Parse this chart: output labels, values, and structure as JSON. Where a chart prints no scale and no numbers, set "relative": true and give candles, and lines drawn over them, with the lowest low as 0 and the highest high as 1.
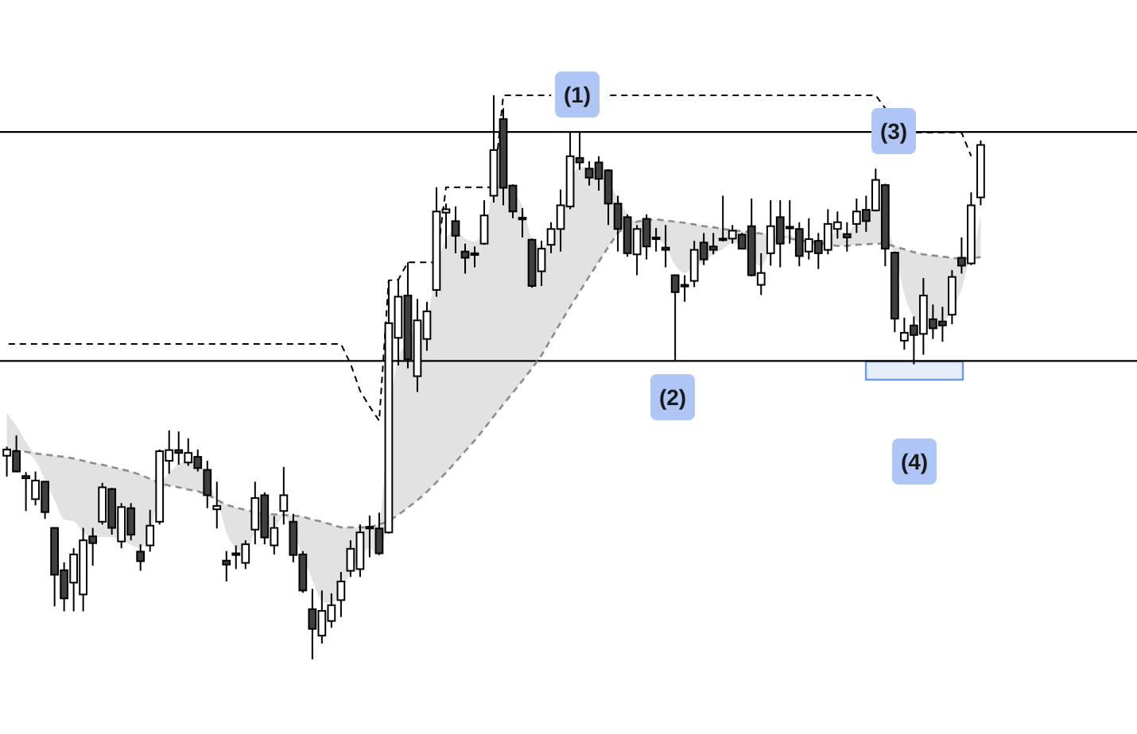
{
  "chart_data": {
    "type": "candlestick",
    "relative": true,
    "tick_labels": false,
    "categories": [
      null,
      null,
      null,
      null,
      null,
      null,
      null,
      null,
      null,
      null,
      null,
      null,
      null,
      null,
      null,
      null,
      null,
      null,
      null,
      null,
      null,
      null,
      null,
      null,
      null,
      null,
      null,
      null,
      null,
      null,
      null,
      null,
      null,
      null,
      null,
      null,
      null,
      null,
      null,
      null,
      null,
      null,
      null,
      null,
      null,
      null,
      null,
      null,
      null,
      null,
      null,
      null,
      null,
      null,
      null,
      null,
      null,
      null,
      null,
      null,
      null,
      null,
      null,
      null,
      null,
      null,
      null,
      null,
      null,
      null,
      null,
      null,
      null,
      null,
      null,
      null,
      null,
      null,
      null,
      null,
      null,
      null,
      null,
      null,
      null,
      null,
      null,
      null,
      null,
      null,
      null,
      null,
      null,
      null,
      null,
      null,
      null,
      null,
      null,
      null,
      null,
      null,
      null
    ],
    "ohlc": [
      [
        0.361,
        0.377,
        0.324,
        0.372
      ],
      [
        0.369,
        0.397,
        0.332,
        0.333
      ],
      [
        0.325,
        0.332,
        0.263,
        0.321
      ],
      [
        0.284,
        0.333,
        0.273,
        0.317
      ],
      [
        0.315,
        0.316,
        0.249,
        0.261
      ],
      [
        0.233,
        0.234,
        0.094,
        0.15
      ],
      [
        0.158,
        0.172,
        0.085,
        0.108
      ],
      [
        0.136,
        0.197,
        0.085,
        0.186
      ],
      [
        0.115,
        0.233,
        0.085,
        0.211
      ],
      [
        0.218,
        0.233,
        0.166,
        0.206
      ],
      [
        0.244,
        0.313,
        0.239,
        0.305
      ],
      [
        0.302,
        0.304,
        0.221,
        0.233
      ],
      [
        0.209,
        0.277,
        0.197,
        0.27
      ],
      [
        0.268,
        0.277,
        0.211,
        0.221
      ],
      [
        0.191,
        0.204,
        0.157,
        0.174
      ],
      [
        0.202,
        0.265,
        0.191,
        0.237
      ],
      [
        0.244,
        0.372,
        0.239,
        0.369
      ],
      [
        0.352,
        0.406,
        0.329,
        0.371
      ],
      [
        0.371,
        0.404,
        0.345,
        0.366
      ],
      [
        0.349,
        0.392,
        0.343,
        0.366
      ],
      [
        0.359,
        0.372,
        0.333,
        0.339
      ],
      [
        0.336,
        0.352,
        0.268,
        0.291
      ],
      [
        0.266,
        0.315,
        0.232,
        0.272
      ],
      [
        0.175,
        0.192,
        0.138,
        0.168
      ],
      [
        0.188,
        0.202,
        0.16,
        0.185
      ],
      [
        0.171,
        0.211,
        0.16,
        0.204
      ],
      [
        0.23,
        0.315,
        0.204,
        0.286
      ],
      [
        0.291,
        0.296,
        0.204,
        0.216
      ],
      [
        0.202,
        0.254,
        0.186,
        0.233
      ],
      [
        0.263,
        0.341,
        0.239,
        0.291
      ],
      [
        0.244,
        0.258,
        0.172,
        0.185
      ],
      [
        0.186,
        0.192,
        0.118,
        0.122
      ],
      [
        0.089,
        0.125,
        0,
        0.054
      ],
      [
        0.042,
        0.122,
        0.028,
        0.086
      ],
      [
        0.068,
        0.117,
        0.056,
        0.096
      ],
      [
        0.105,
        0.155,
        0.075,
        0.138
      ],
      [
        0.157,
        0.211,
        0.146,
        0.196
      ],
      [
        0.16,
        0.239,
        0.146,
        0.225
      ],
      [
        0.235,
        0.255,
        0.181,
        0.232
      ],
      [
        0.232,
        0.26,
        0.185,
        0.188
      ],
      [
        0.225,
        0.672,
        0.223,
        0.596
      ],
      [
        0.57,
        0.673,
        0.521,
        0.643
      ],
      [
        0.645,
        0.704,
        0.516,
        0.532
      ],
      [
        0.502,
        0.639,
        0.474,
        0.601
      ],
      [
        0.568,
        0.634,
        0.547,
        0.617
      ],
      [
        0.655,
        0.837,
        0.643,
        0.794
      ],
      [
        0.792,
        0.808,
        0.728,
        0.798
      ],
      [
        0.777,
        0.803,
        0.72,
        0.751
      ],
      [
        0.723,
        0.737,
        0.684,
        0.712
      ],
      [
        0.72,
        0.732,
        0.695,
        0.717
      ],
      [
        0.737,
        0.814,
        0.735,
        0.787
      ],
      [
        0.822,
        1,
        0.81,
        0.903
      ],
      [
        0.958,
        0.977,
        0.805,
        0.836
      ],
      [
        0.84,
        0.842,
        0.782,
        0.794
      ],
      [
        0.783,
        0.8,
        0.748,
        0.78
      ],
      [
        0.744,
        0.746,
        0.659,
        0.662
      ],
      [
        0.688,
        0.742,
        0.662,
        0.728
      ],
      [
        0.735,
        0.775,
        0.72,
        0.763
      ],
      [
        0.763,
        0.833,
        0.723,
        0.805
      ],
      [
        0.803,
        0.934,
        0.798,
        0.892
      ],
      [
        0.889,
        0.934,
        0.868,
        0.881
      ],
      [
        0.87,
        0.883,
        0.84,
        0.854
      ],
      [
        0.881,
        0.892,
        0.831,
        0.852
      ],
      [
        0.867,
        0.869,
        0.77,
        0.808
      ],
      [
        0.808,
        0.822,
        0.723,
        0.763
      ],
      [
        0.784,
        0.789,
        0.714,
        0.72
      ],
      [
        0.718,
        0.77,
        0.681,
        0.763
      ],
      [
        0.781,
        0.789,
        0.709,
        0.732
      ],
      [
        0.748,
        0.765,
        0.723,
        0.745
      ],
      [
        0.73,
        0.77,
        0.695,
        0.726
      ],
      [
        0.681,
        0.682,
        0.53,
        0.651
      ],
      [
        0.664,
        0.681,
        0.634,
        0.661
      ],
      [
        0.671,
        0.742,
        0.66,
        0.726
      ],
      [
        0.739,
        0.756,
        0.699,
        0.709
      ],
      [
        0.732,
        0.756,
        0.718,
        0.726
      ],
      [
        0.746,
        0.822,
        0.741,
        0.744
      ],
      [
        0.746,
        0.77,
        0.737,
        0.76
      ],
      [
        0.753,
        0.756,
        0.727,
        0.728
      ],
      [
        0.768,
        0.817,
        0.679,
        0.681
      ],
      [
        0.664,
        0.72,
        0.646,
        0.685
      ],
      [
        0.72,
        0.814,
        0.698,
        0.768
      ],
      [
        0.784,
        0.814,
        0.695,
        0.737
      ],
      [
        0.767,
        0.814,
        0.737,
        0.764
      ],
      [
        0.763,
        0.775,
        0.697,
        0.715
      ],
      [
        0.723,
        0.782,
        0.709,
        0.745
      ],
      [
        0.742,
        0.756,
        0.692,
        0.72
      ],
      [
        0.726,
        0.798,
        0.718,
        0.772
      ],
      [
        0.763,
        0.794,
        0.746,
        0.775
      ],
      [
        0.754,
        0.775,
        0.723,
        0.748
      ],
      [
        0.772,
        0.817,
        0.756,
        0.794
      ],
      [
        0.797,
        0.822,
        0.758,
        0.777
      ],
      [
        0.796,
        0.87,
        0.794,
        0.85
      ],
      [
        0.841,
        0.843,
        0.697,
        0.728
      ],
      [
        0.721,
        0.723,
        0.58,
        0.604
      ],
      [
        0.565,
        0.606,
        0.549,
        0.579
      ],
      [
        0.592,
        0.608,
        0.523,
        0.575
      ],
      [
        0.577,
        0.676,
        0.54,
        0.645
      ],
      [
        0.603,
        0.629,
        0.568,
        0.587
      ],
      [
        0.599,
        0.625,
        0.563,
        0.592
      ],
      [
        0.611,
        0.69,
        0.594,
        0.678
      ],
      [
        0.712,
        0.748,
        0.684,
        0.698
      ],
      [
        0.702,
        0.828,
        0.699,
        0.805
      ],
      [
        0.819,
        0.92,
        0.805,
        0.912
      ]
    ],
    "series": [
      {
        "type": "line",
        "color": "#000000",
        "line_style": "dashed",
        "values": [
          0.559,
          0.559,
          0.559,
          0.559,
          0.559,
          0.559,
          0.559,
          0.559,
          0.559,
          0.559,
          0.559,
          0.559,
          0.559,
          0.559,
          0.559,
          0.559,
          0.559,
          0.559,
          0.559,
          0.559,
          0.559,
          0.559,
          0.559,
          0.559,
          0.559,
          0.559,
          0.559,
          0.559,
          0.559,
          0.559,
          0.559,
          0.559,
          0.559,
          0.559,
          0.559,
          0.559,
          0.524,
          0.476,
          0.448,
          0.423,
          0.672,
          0.673,
          0.704,
          0.704,
          0.704,
          0.704,
          0.837,
          0.837,
          0.837,
          0.837,
          0.837,
          0.837,
          1,
          1,
          1,
          1,
          1,
          1,
          null,
          null,
          null,
          null,
          null,
          1,
          1,
          1,
          1,
          1,
          1,
          1,
          1,
          1,
          1,
          1,
          1,
          1,
          1,
          1,
          1,
          1,
          1,
          1,
          1,
          1,
          1,
          1,
          1,
          1,
          1,
          1,
          1,
          1,
          0.977,
          null,
          null,
          0.934,
          0.934,
          0.934,
          0.934,
          0.934,
          0.934,
          0.892,
          null
        ]
      },
      {
        "type": "line",
        "color": "#8c8c8c",
        "line_style": "dashed",
        "values": [
          0.372,
          0.37,
          0.368,
          0.365,
          0.363,
          0.361,
          0.359,
          0.356,
          0.352,
          0.348,
          0.345,
          0.341,
          0.337,
          0.333,
          0.327,
          0.32,
          0.313,
          0.308,
          0.305,
          0.301,
          0.298,
          0.292,
          0.283,
          0.274,
          0.269,
          0.265,
          0.261,
          0.258,
          0.257,
          0.256,
          0.255,
          0.253,
          0.248,
          0.244,
          0.239,
          0.234,
          0.234,
          0.234,
          0.234,
          0.239,
          0.245,
          0.256,
          0.269,
          0.282,
          0.297,
          0.314,
          0.331,
          0.35,
          0.369,
          0.388,
          0.409,
          0.431,
          0.452,
          0.473,
          0.494,
          0.516,
          0.539,
          0.568,
          0.597,
          0.625,
          0.652,
          0.679,
          0.705,
          0.731,
          0.756,
          0.769,
          0.776,
          0.779,
          0.78,
          0.778,
          0.776,
          0.774,
          0.771,
          0.768,
          0.766,
          0.763,
          0.761,
          0.759,
          0.757,
          0.755,
          0.753,
          0.75,
          0.746,
          0.743,
          0.74,
          0.74,
          0.735,
          0.733,
          0.733,
          0.735,
          0.736,
          0.737,
          0.737,
          0.732,
          0.727,
          0.722,
          0.718,
          0.716,
          0.714,
          0.712,
          0.71,
          0.711,
          0.713
        ],
        "lower": [
          0.372,
          0.37,
          0.368,
          0.352,
          0.318,
          0.282,
          0.248,
          0.245,
          0.225,
          0.217,
          0.217,
          0.217,
          0.211,
          0.203,
          0.197,
          0.225,
          0.29,
          0.308,
          0.305,
          0.301,
          0.298,
          0.292,
          0.282,
          0.225,
          0.197,
          0.189,
          0.225,
          0.239,
          0.234,
          0.254,
          0.225,
          0.183,
          0.141,
          0.104,
          0.099,
          0.121,
          0.155,
          0.183,
          0.197,
          0.183,
          0.245,
          0.256,
          0.269,
          0.282,
          0.297,
          0.314,
          0.331,
          0.35,
          0.369,
          0.388,
          0.409,
          0.431,
          0.452,
          0.473,
          0.494,
          0.516,
          0.539,
          0.568,
          0.597,
          0.625,
          0.652,
          0.679,
          0.705,
          0.731,
          0.756,
          0.769,
          0.761,
          0.752,
          0.746,
          0.732,
          0.699,
          0.685,
          0.696,
          0.704,
          0.718,
          0.727,
          0.738,
          0.732,
          0.713,
          0.696,
          0.727,
          0.746,
          0.746,
          0.741,
          0.74,
          0.73,
          0.735,
          0.733,
          0.733,
          0.735,
          0.736,
          0.737,
          0.737,
          0.718,
          0.648,
          0.606,
          0.592,
          0.583,
          0.592,
          0.62,
          0.656,
          0.711,
          0.713
        ],
        "upper": [
          0.437,
          0.414,
          0.386,
          0.365,
          0.363,
          0.361,
          0.359,
          0.356,
          0.352,
          0.348,
          0.345,
          0.341,
          0.337,
          0.333,
          0.327,
          0.32,
          0.313,
          0.33,
          0.346,
          0.352,
          0.346,
          0.324,
          0.283,
          0.274,
          0.269,
          0.265,
          0.261,
          0.258,
          0.257,
          0.256,
          0.255,
          0.253,
          0.248,
          0.244,
          0.239,
          0.234,
          0.234,
          0.234,
          0.234,
          0.239,
          0.423,
          0.535,
          0.563,
          0.592,
          0.606,
          0.69,
          0.746,
          0.761,
          0.746,
          0.741,
          0.761,
          0.831,
          0.845,
          0.831,
          0.803,
          0.746,
          0.732,
          0.746,
          0.78,
          0.845,
          0.873,
          0.873,
          0.865,
          0.845,
          0.817,
          0.789,
          0.776,
          0.779,
          0.78,
          0.778,
          0.776,
          0.774,
          0.771,
          0.768,
          0.766,
          0.763,
          0.761,
          0.759,
          0.757,
          0.755,
          0.753,
          0.75,
          0.752,
          0.743,
          0.741,
          0.74,
          0.746,
          0.761,
          0.755,
          0.775,
          0.78,
          0.808,
          0.78,
          0.732,
          0.727,
          0.722,
          0.718,
          0.716,
          0.714,
          0.712,
          0.71,
          0.718,
          0.789
        ]
      }
    ],
    "ref_lines": [
      {
        "axis": "y",
        "value": 0.935,
        "color": "#000000"
      },
      {
        "axis": "y",
        "value": 0.529,
        "color": "#000000"
      }
    ],
    "annotations": [
      "(1)",
      "(2)",
      "(3)",
      "(4)"
    ]
  }
}
